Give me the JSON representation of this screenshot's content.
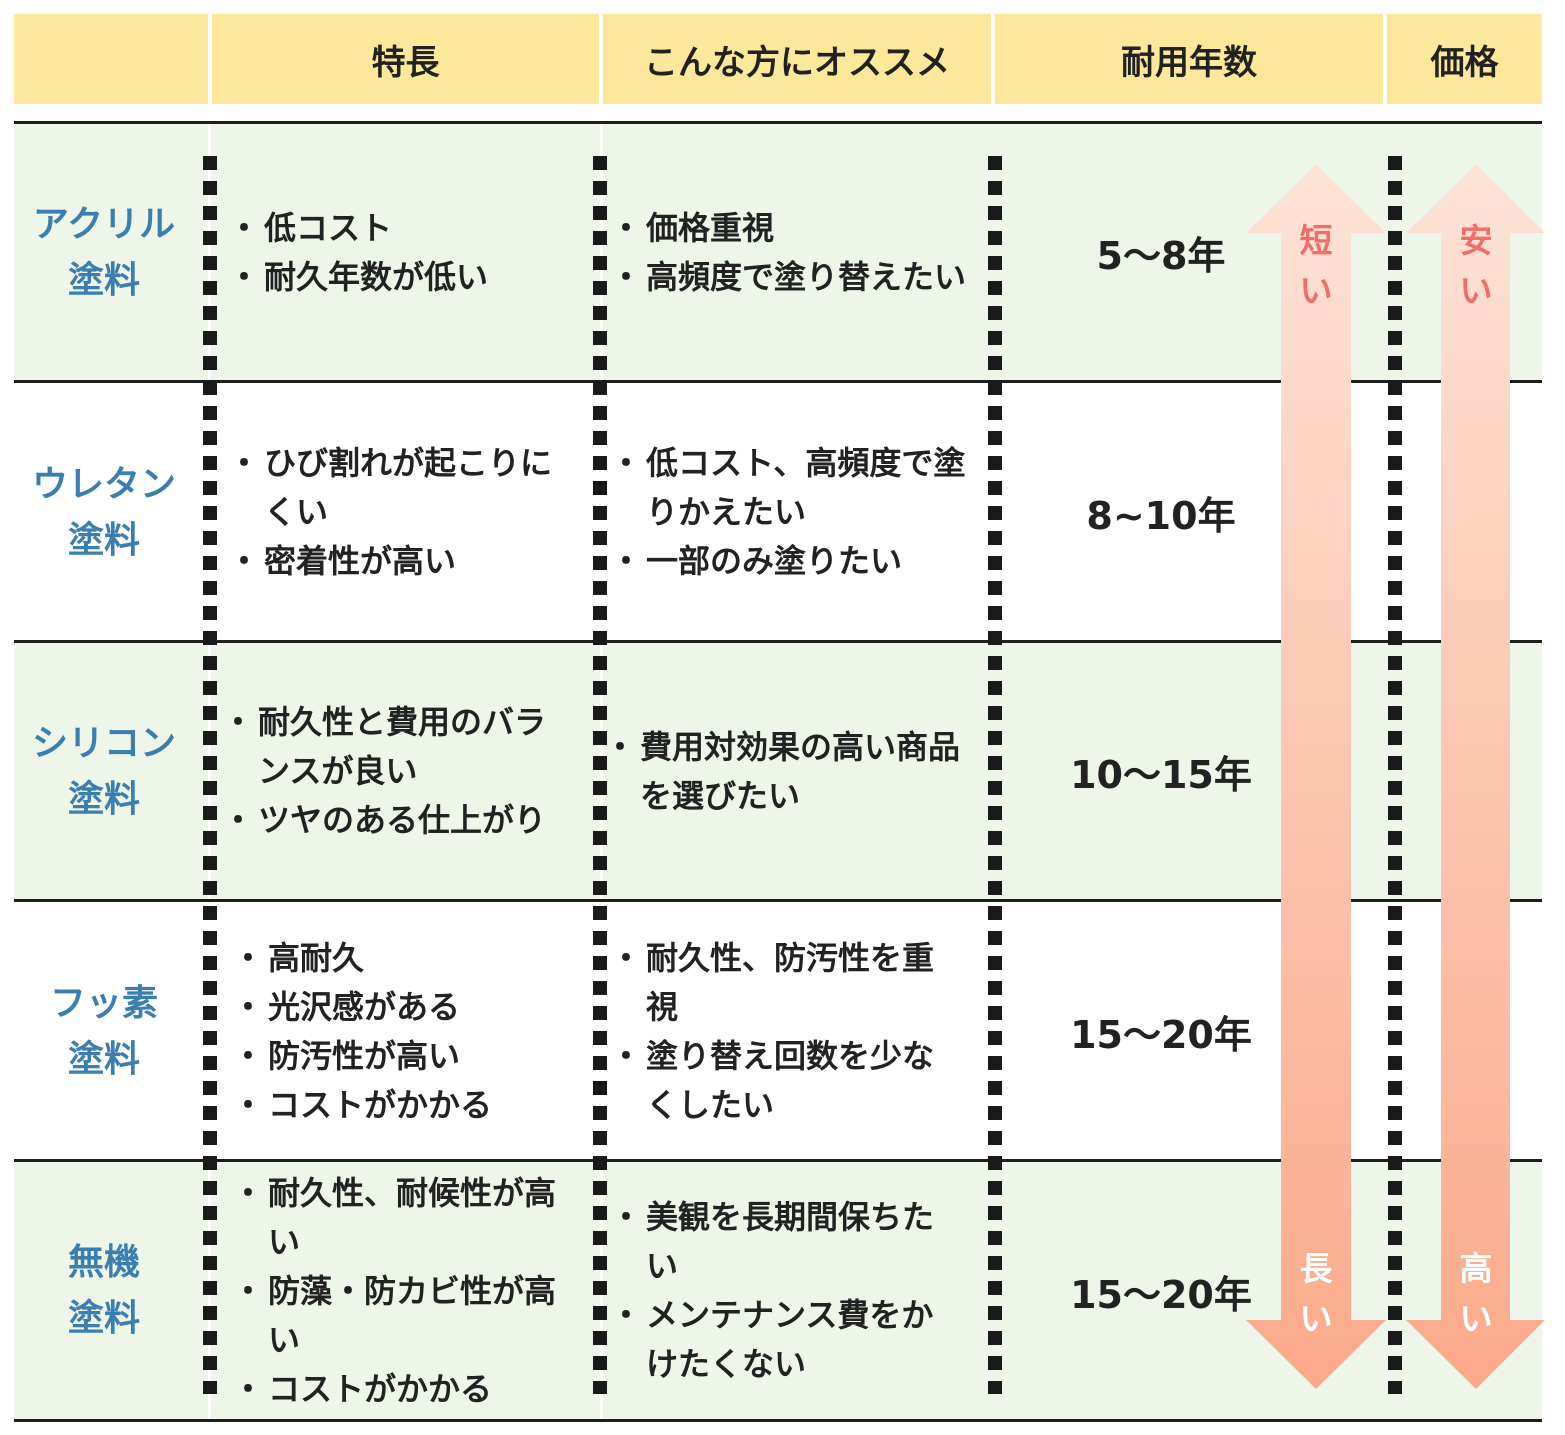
{
  "header": {
    "col_features": "特長",
    "col_recommend": "こんな方にオススメ",
    "col_years": "耐用年数",
    "col_price": "価格"
  },
  "rows": [
    {
      "name_line1": "アクリル",
      "name_line2": "塗料",
      "features": [
        "低コスト",
        "耐久年数が低い"
      ],
      "recommend": [
        "価格重視",
        "高頻度で塗り替えたい"
      ],
      "years": "5〜8年"
    },
    {
      "name_line1": "ウレタン",
      "name_line2": "塗料",
      "features": [
        "ひび割れが起こりにくい",
        "密着性が高い"
      ],
      "recommend": [
        "低コスト、高頻度で塗りかえたい",
        "一部のみ塗りたい"
      ],
      "years": "8~10年"
    },
    {
      "name_line1": "シリコン",
      "name_line2": "塗料",
      "features": [
        "耐久性と費用のバランスが良い",
        "ツヤのある仕上がり"
      ],
      "recommend": [
        "費用対効果の高い商品を選びたい"
      ],
      "years": "10〜15年"
    },
    {
      "name_line1": "フッ素",
      "name_line2": "塗料",
      "features": [
        "高耐久",
        "光沢感がある",
        "防汚性が高い",
        "コストがかかる"
      ],
      "recommend": [
        "耐久性、防汚性を重視",
        "塗り替え回数を少なくしたい"
      ],
      "years": "15〜20年"
    },
    {
      "name_line1": "無機",
      "name_line2": "塗料",
      "features": [
        "耐久性、耐候性が高い",
        "防藻・防カビ性が高い",
        "コストがかかる"
      ],
      "recommend": [
        "美観を長期間保ちたい",
        "メンテナンス費をかけたくない"
      ],
      "years": "15〜20年"
    }
  ],
  "bullet": "・",
  "years_arrow": {
    "top_label": "短い",
    "bottom_label": "長い"
  },
  "price_arrow": {
    "top_label": "安い",
    "bottom_label": "高い"
  },
  "colors": {
    "header_bg": "#fce79a",
    "row_shade": "#eef6ea",
    "name_text": "#3b7fb0",
    "arrow_light": "#fde3d6",
    "arrow_dark": "#fba98a",
    "arrow_label_top": "#f36c6c",
    "arrow_label_bottom": "#ffffff"
  }
}
